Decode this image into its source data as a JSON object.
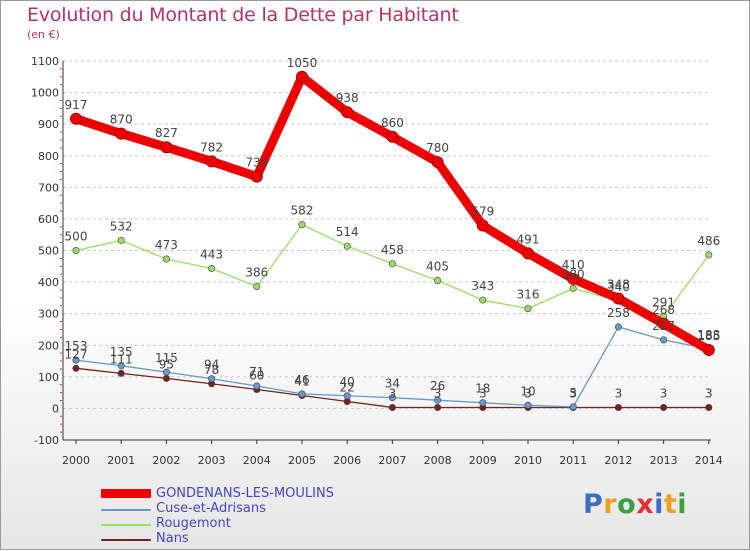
{
  "title": "Evolution du Montant de la Dette par Habitant",
  "subtitle": "(en €)",
  "chart_data": {
    "type": "line",
    "title": "Evolution du Montant de la Dette par Habitant",
    "subtitle": "(en €)",
    "xlabel": "",
    "ylabel": "",
    "x": [
      "2000",
      "2001",
      "2002",
      "2003",
      "2004",
      "2005",
      "2006",
      "2007",
      "2008",
      "2009",
      "2010",
      "2011",
      "2012",
      "2013",
      "2014"
    ],
    "ylim": [
      -100,
      1100
    ],
    "yticks": [
      "-100",
      "0",
      "100",
      "200",
      "300",
      "400",
      "500",
      "600",
      "700",
      "800",
      "900",
      "1000",
      "1100"
    ],
    "grid": "horizontal dashed",
    "legend_position": "bottom-left",
    "series": [
      {
        "name": "GONDENANS-LES-MOULINS",
        "color": "#ee0000",
        "values": [
          917,
          870,
          827,
          782,
          734,
          1050,
          938,
          860,
          780,
          579,
          491,
          410,
          348,
          268,
          185
        ],
        "labels": [
          "917",
          "870",
          "827",
          "782",
          "734",
          "1050",
          "938",
          "860",
          "780",
          "579",
          "491",
          "410",
          "348",
          "268",
          "185"
        ]
      },
      {
        "name": "Cuse-et-Adrisans",
        "color": "#6699cc",
        "values": [
          153,
          135,
          115,
          94,
          71,
          46,
          40,
          34,
          26,
          18,
          10,
          5,
          258,
          217,
          188
        ],
        "labels": [
          "153",
          "135",
          "115",
          "94",
          "71",
          "46",
          "40",
          "34",
          "26",
          "18",
          "10",
          "5",
          "258",
          "217",
          "188"
        ]
      },
      {
        "name": "Rougemont",
        "color": "#99dd66",
        "values": [
          500,
          532,
          473,
          443,
          386,
          582,
          514,
          458,
          405,
          343,
          316,
          380,
          340,
          291,
          486
        ],
        "labels": [
          "500",
          "532",
          "473",
          "443",
          "386",
          "582",
          "514",
          "458",
          "405",
          "343",
          "316",
          "380",
          "340",
          "291",
          "486"
        ]
      },
      {
        "name": "Nans",
        "color": "#772222",
        "values": [
          127,
          111,
          95,
          78,
          60,
          41,
          22,
          3,
          3,
          3,
          3,
          3,
          3,
          3,
          3
        ],
        "labels": [
          "127",
          "111",
          "95",
          "78",
          "60",
          "41",
          "22",
          "3",
          "3",
          "3",
          "3",
          "3",
          "3",
          "3",
          "3"
        ]
      }
    ]
  },
  "logo": {
    "letters": [
      "P",
      "r",
      "o",
      "x",
      "i",
      "t",
      "i"
    ],
    "colors": [
      "#3a6fc4",
      "#f0a020",
      "#3aa040",
      "#e03030",
      "#3a6fc4",
      "#f0a020",
      "#3aa040"
    ]
  }
}
